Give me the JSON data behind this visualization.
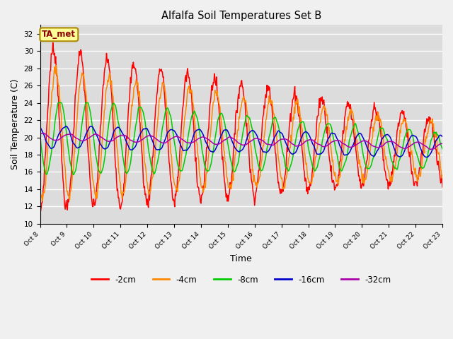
{
  "title": "Alfalfa Soil Temperatures Set B",
  "xlabel": "Time",
  "ylabel": "Soil Temperature (C)",
  "ylim": [
    10,
    33
  ],
  "yticks": [
    10,
    12,
    14,
    16,
    18,
    20,
    22,
    24,
    26,
    28,
    30,
    32
  ],
  "xlim": [
    0,
    360
  ],
  "xtick_labels": [
    "Oct 8",
    "Oct 9",
    "Oct 10",
    "Oct 11",
    "Oct 12",
    "Oct 13",
    "Oct 14",
    "Oct 15",
    "Oct 16",
    "Oct 17",
    "Oct 18",
    "Oct 19",
    "Oct 20",
    "Oct 21",
    "Oct 22",
    "Oct 23"
  ],
  "xtick_positions": [
    0,
    24,
    48,
    72,
    96,
    120,
    144,
    168,
    192,
    216,
    240,
    264,
    288,
    312,
    336,
    360
  ],
  "colors": {
    "-2cm": "#ff0000",
    "-4cm": "#ff8800",
    "-8cm": "#00cc00",
    "-16cm": "#0000cc",
    "-32cm": "#aa00aa"
  },
  "legend_label": "TA_met",
  "legend_box_color": "#ffff99",
  "legend_box_edge_color": "#aa8800",
  "plot_bg_color": "#dcdcdc",
  "fig_bg_color": "#f0f0f0",
  "grid_color": "#ffffff",
  "n_points": 721
}
